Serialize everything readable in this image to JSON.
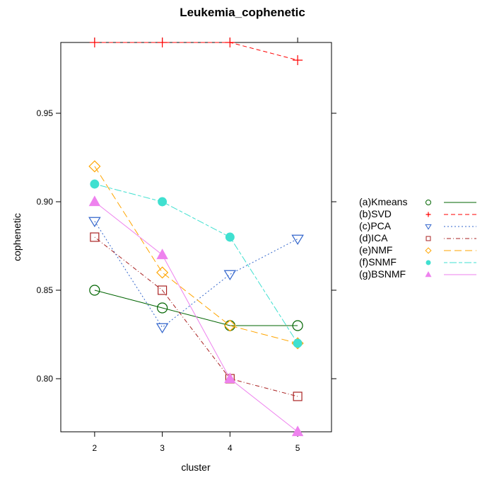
{
  "chart_data": {
    "type": "line",
    "title": "Leukemia_cophenetic",
    "xlabel": "cluster",
    "ylabel": "cophenetic",
    "x": [
      2,
      3,
      4,
      5
    ],
    "xlim": [
      1.5,
      5.5
    ],
    "ylim": [
      0.77,
      0.99
    ],
    "xticks": [
      "2",
      "3",
      "4",
      "5"
    ],
    "yticks": [
      "0.80",
      "0.85",
      "0.90",
      "0.95"
    ],
    "grid": false,
    "legend_position": "right",
    "series": [
      {
        "name": "(a)Kmeans",
        "values": [
          0.85,
          0.84,
          0.83,
          0.83
        ],
        "color": "#006400",
        "marker": "circle-open",
        "line": "solid"
      },
      {
        "name": "(b)SVD",
        "values": [
          0.99,
          0.99,
          0.99,
          0.98
        ],
        "color": "#ff0000",
        "marker": "plus",
        "line": "dashed"
      },
      {
        "name": "(c)PCA",
        "values": [
          0.889,
          0.829,
          0.859,
          0.879
        ],
        "color": "#3366cc",
        "marker": "triangle-down-open",
        "line": "dotted"
      },
      {
        "name": "(d)ICA",
        "values": [
          0.88,
          0.85,
          0.8,
          0.79
        ],
        "color": "#aa2222",
        "marker": "square-open",
        "line": "dashdot"
      },
      {
        "name": "(e)NMF",
        "values": [
          0.92,
          0.86,
          0.83,
          0.82
        ],
        "color": "#ffa500",
        "marker": "diamond-open",
        "line": "longdash"
      },
      {
        "name": "(f)SNMF",
        "values": [
          0.91,
          0.9,
          0.88,
          0.82
        ],
        "color": "#40e0d0",
        "marker": "circle-filled",
        "line": "twodash"
      },
      {
        "name": "(g)BSNMF",
        "values": [
          0.9,
          0.87,
          0.8,
          0.77
        ],
        "color": "#ee82ee",
        "marker": "triangle-filled",
        "line": "solid"
      }
    ]
  }
}
